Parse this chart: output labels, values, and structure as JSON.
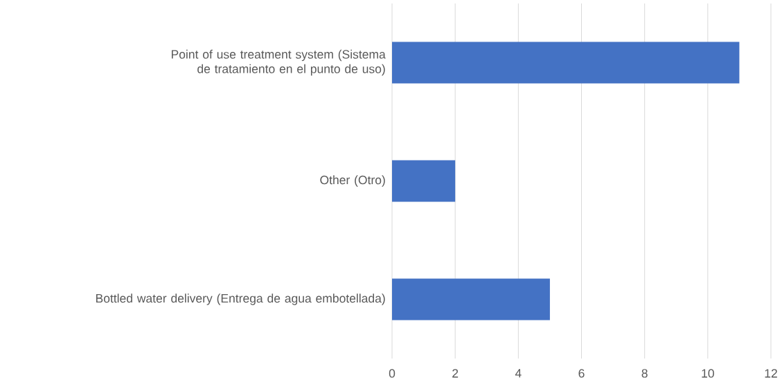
{
  "chart_data": {
    "type": "bar",
    "orientation": "horizontal",
    "categories": [
      "Point of use treatment system (Sistema de tratamiento en el punto de uso)",
      "Other (Otro)",
      "Bottled water delivery (Entrega de agua embotellada)"
    ],
    "values": [
      11,
      2,
      5
    ],
    "color": "#4472c4",
    "xlim": [
      0,
      12
    ],
    "xticks": [
      0,
      2,
      4,
      6,
      8,
      10,
      12
    ],
    "grid": "x"
  }
}
